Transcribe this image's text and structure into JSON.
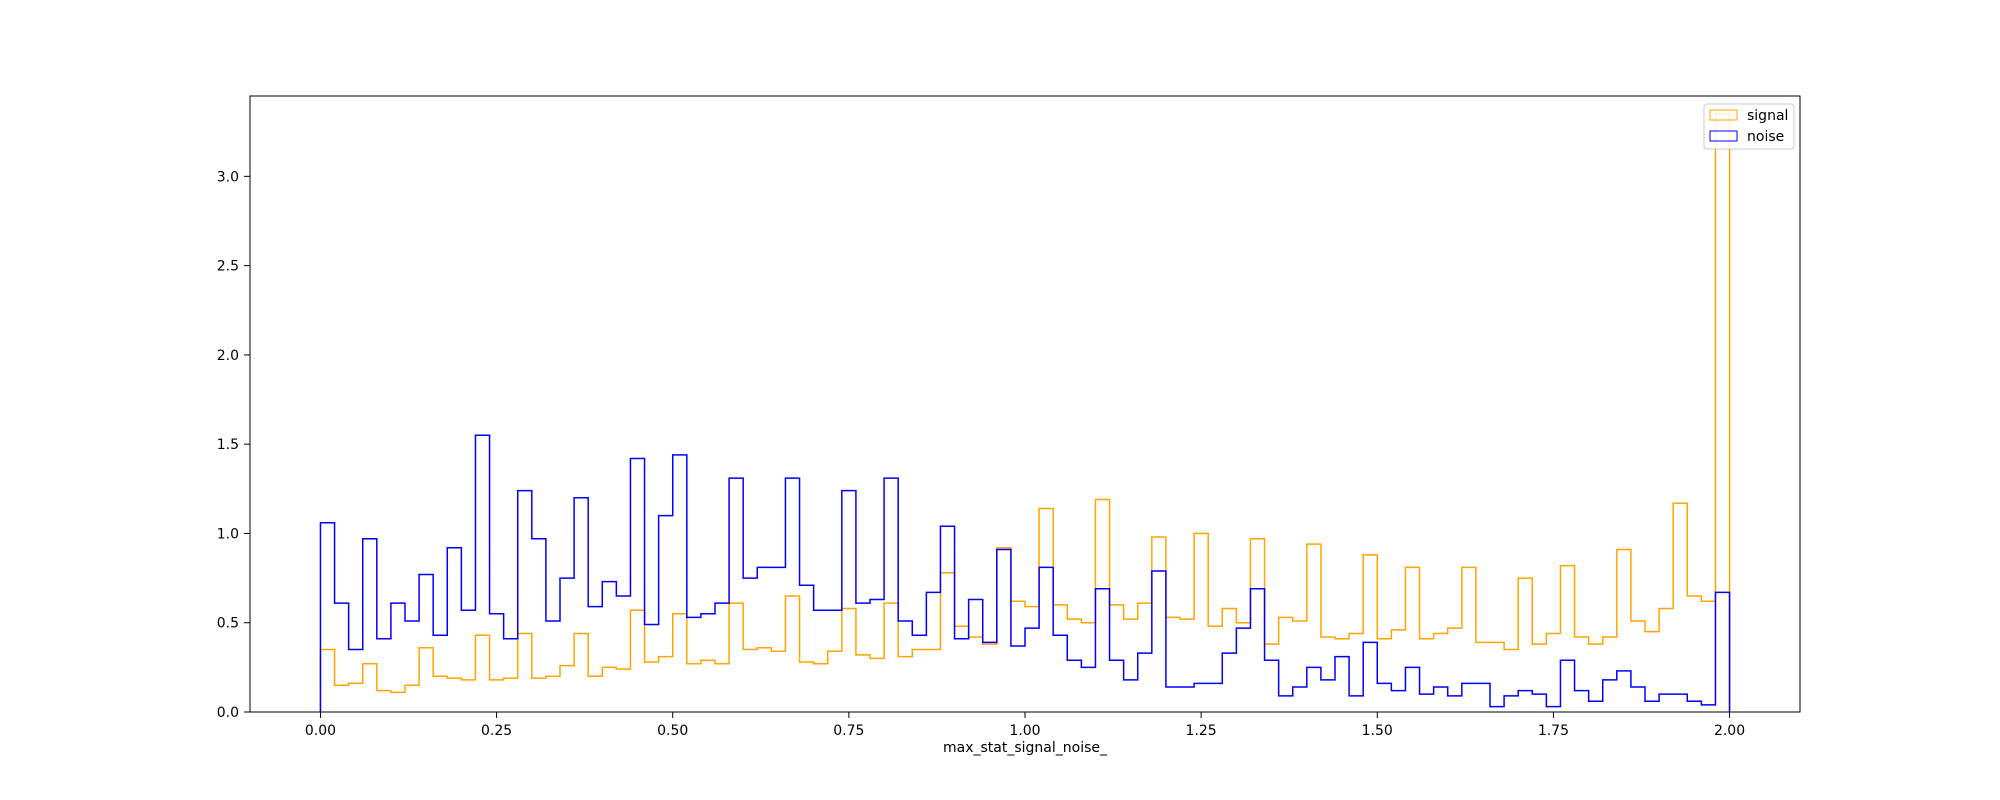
{
  "chart_data": {
    "type": "histogram",
    "xlabel": "max_stat_signal_noise_",
    "ylabel": "",
    "xlim": [
      -0.1,
      2.1
    ],
    "ylim": [
      0,
      3.45
    ],
    "x_ticks": [
      0.0,
      0.25,
      0.5,
      0.75,
      1.0,
      1.25,
      1.5,
      1.75,
      2.0
    ],
    "x_tick_labels": [
      "0.00",
      "0.25",
      "0.50",
      "0.75",
      "1.00",
      "1.25",
      "1.50",
      "1.75",
      "2.00"
    ],
    "y_ticks": [
      0.0,
      0.5,
      1.0,
      1.5,
      2.0,
      2.5,
      3.0
    ],
    "y_tick_labels": [
      "0.0",
      "0.5",
      "1.0",
      "1.5",
      "2.0",
      "2.5",
      "3.0"
    ],
    "grid": false,
    "legend": {
      "position": "top-right"
    },
    "bin_start": 0.0,
    "bin_width": 0.02,
    "series": [
      {
        "name": "signal",
        "color": "#ffa500",
        "values": [
          0.35,
          0.15,
          0.16,
          0.27,
          0.12,
          0.11,
          0.15,
          0.36,
          0.2,
          0.19,
          0.18,
          0.43,
          0.18,
          0.19,
          0.44,
          0.19,
          0.2,
          0.26,
          0.44,
          0.2,
          0.25,
          0.24,
          0.57,
          0.28,
          0.31,
          0.55,
          0.27,
          0.29,
          0.27,
          0.61,
          0.35,
          0.36,
          0.34,
          0.65,
          0.28,
          0.27,
          0.34,
          0.58,
          0.32,
          0.3,
          0.61,
          0.31,
          0.35,
          0.35,
          0.78,
          0.48,
          0.42,
          0.38,
          0.92,
          0.62,
          0.59,
          1.14,
          0.6,
          0.52,
          0.5,
          1.19,
          0.6,
          0.52,
          0.61,
          0.98,
          0.53,
          0.52,
          1.0,
          0.48,
          0.58,
          0.5,
          0.97,
          0.38,
          0.53,
          0.51,
          0.94,
          0.42,
          0.41,
          0.44,
          0.88,
          0.41,
          0.46,
          0.81,
          0.41,
          0.44,
          0.47,
          0.81,
          0.39,
          0.39,
          0.35,
          0.75,
          0.38,
          0.44,
          0.82,
          0.42,
          0.38,
          0.42,
          0.91,
          0.51,
          0.45,
          0.58,
          1.17,
          0.65,
          0.62,
          3.35
        ]
      },
      {
        "name": "noise",
        "color": "#0000ff",
        "values": [
          1.06,
          0.61,
          0.35,
          0.97,
          0.41,
          0.61,
          0.51,
          0.77,
          0.43,
          0.92,
          0.57,
          1.55,
          0.55,
          0.41,
          1.24,
          0.97,
          0.51,
          0.75,
          1.2,
          0.59,
          0.73,
          0.65,
          1.42,
          0.49,
          1.1,
          1.44,
          0.53,
          0.55,
          0.61,
          1.31,
          0.75,
          0.81,
          0.81,
          1.31,
          0.71,
          0.57,
          0.57,
          1.24,
          0.61,
          0.63,
          1.31,
          0.51,
          0.43,
          0.67,
          1.04,
          0.41,
          0.63,
          0.39,
          0.91,
          0.37,
          0.47,
          0.81,
          0.43,
          0.29,
          0.25,
          0.69,
          0.29,
          0.18,
          0.33,
          0.79,
          0.14,
          0.14,
          0.16,
          0.16,
          0.33,
          0.47,
          0.69,
          0.29,
          0.09,
          0.14,
          0.25,
          0.18,
          0.31,
          0.09,
          0.39,
          0.16,
          0.12,
          0.25,
          0.1,
          0.14,
          0.09,
          0.16,
          0.16,
          0.03,
          0.09,
          0.12,
          0.1,
          0.03,
          0.29,
          0.12,
          0.06,
          0.18,
          0.23,
          0.14,
          0.06,
          0.1,
          0.1,
          0.06,
          0.04,
          0.67
        ]
      }
    ]
  }
}
